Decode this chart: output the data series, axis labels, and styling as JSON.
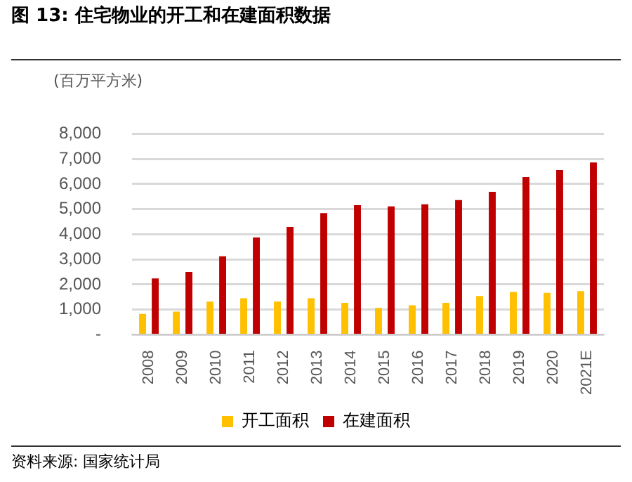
{
  "chart_data": {
    "type": "bar",
    "title": "图 13: 住宅物业的开工和在建面积数据",
    "ylabel": "(百万平方米)",
    "categories": [
      "2008",
      "2009",
      "2010",
      "2011",
      "2012",
      "2013",
      "2014",
      "2015",
      "2016",
      "2017",
      "2018",
      "2019",
      "2020",
      "2021E"
    ],
    "series": [
      {
        "name": "开工面积",
        "color": "#ffc000",
        "values": [
          830,
          920,
          1320,
          1450,
          1320,
          1450,
          1270,
          1070,
          1170,
          1270,
          1540,
          1700,
          1670,
          1740
        ]
      },
      {
        "name": "在建面积",
        "color": "#c00000",
        "values": [
          2240,
          2500,
          3120,
          3870,
          4290,
          4840,
          5160,
          5110,
          5190,
          5360,
          5690,
          6280,
          6560,
          6860
        ]
      }
    ],
    "ylim": [
      0,
      8000
    ],
    "yticks": [
      {
        "value": 0,
        "label": "-"
      },
      {
        "value": 1000,
        "label": "1,000"
      },
      {
        "value": 2000,
        "label": "2,000"
      },
      {
        "value": 3000,
        "label": "3,000"
      },
      {
        "value": 4000,
        "label": "4,000"
      },
      {
        "value": 5000,
        "label": "5,000"
      },
      {
        "value": 6000,
        "label": "6,000"
      },
      {
        "value": 7000,
        "label": "7,000"
      },
      {
        "value": 8000,
        "label": "8,000"
      }
    ],
    "grid": "y",
    "legend": "bottom",
    "annotations": [
      "资料来源: 国家统计局"
    ]
  }
}
